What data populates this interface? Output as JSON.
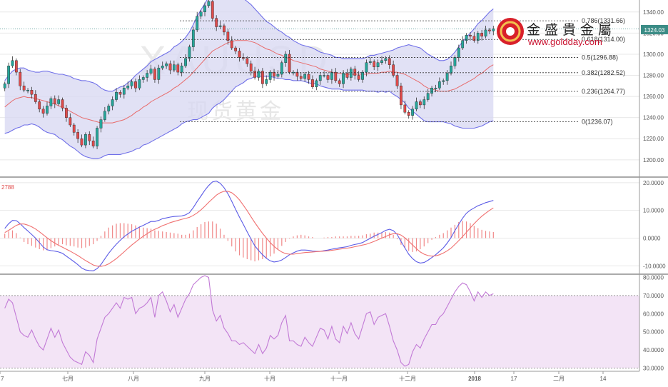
{
  "watermark": {
    "symbol": "XAUUSD",
    "subtitle": "现货黄金"
  },
  "logo": {
    "name": "金盛貴金屬",
    "url": "www.goldday.com"
  },
  "colors": {
    "up": "#26a69a",
    "down": "#e04b4b",
    "band_line": "#6f6fe8",
    "band_fill": "#d7d7f2",
    "ma_mid": "#e86b6b",
    "macd": "#5b5be6",
    "signal": "#f07070",
    "hist": "#f08888",
    "rsi_line": "#c27ad6",
    "rsi_fill": "#f3e4f6",
    "grid": "#e8e8e8",
    "axis": "#555555"
  },
  "chart_data": [
    {
      "id": "price",
      "type": "candlestick",
      "title": "",
      "y_ticks": [
        1200,
        1220,
        1240,
        1260,
        1280,
        1300,
        1320,
        1340
      ],
      "ylim": [
        1185,
        1350
      ],
      "current_price": "1324.03",
      "x_labels": [
        "7",
        "七月",
        "八月",
        "九月",
        "十月",
        "十一月",
        "十二月",
        "2018",
        "17",
        "二月",
        "14"
      ],
      "fib_levels": [
        {
          "label": "0.786(1331.66)",
          "value": 1331.66
        },
        {
          "label": "0.618(1314.00)",
          "value": 1314.0
        },
        {
          "label": "0.5(1296.88)",
          "value": 1296.88
        },
        {
          "label": "0.382(1282.52)",
          "value": 1282.52
        },
        {
          "label": "0.236(1264.77)",
          "value": 1264.77
        },
        {
          "label": "0(1236.07)",
          "value": 1236.07
        }
      ],
      "closes": [
        1272,
        1289,
        1294,
        1283,
        1270,
        1266,
        1266,
        1262,
        1255,
        1248,
        1244,
        1251,
        1258,
        1253,
        1257,
        1249,
        1240,
        1233,
        1226,
        1220,
        1214,
        1224,
        1218,
        1213,
        1230,
        1238,
        1246,
        1251,
        1257,
        1264,
        1262,
        1268,
        1270,
        1274,
        1268,
        1276,
        1278,
        1282,
        1286,
        1276,
        1287,
        1289,
        1291,
        1285,
        1290,
        1283,
        1289,
        1296,
        1307,
        1323,
        1336,
        1340,
        1346,
        1350,
        1334,
        1326,
        1327,
        1321,
        1313,
        1306,
        1303,
        1297,
        1296,
        1291,
        1284,
        1278,
        1284,
        1272,
        1276,
        1283,
        1279,
        1281,
        1292,
        1300,
        1283,
        1283,
        1279,
        1277,
        1281,
        1276,
        1269,
        1275,
        1280,
        1280,
        1276,
        1283,
        1275,
        1272,
        1282,
        1278,
        1286,
        1280,
        1276,
        1283,
        1292,
        1293,
        1288,
        1292,
        1294,
        1296,
        1290,
        1280,
        1270,
        1252,
        1245,
        1242,
        1248,
        1255,
        1252,
        1257,
        1263,
        1268,
        1268,
        1274,
        1275,
        1282,
        1289,
        1297,
        1306,
        1313,
        1318,
        1317,
        1313,
        1320,
        1317,
        1323,
        1322,
        1324
      ],
      "middle_band": [
        1250,
        1253,
        1256,
        1258,
        1259,
        1260,
        1259,
        1259,
        1258,
        1257,
        1256,
        1255,
        1254,
        1253,
        1251,
        1250,
        1248,
        1246,
        1244,
        1242,
        1240,
        1239,
        1238,
        1237,
        1236,
        1235,
        1235,
        1235,
        1235,
        1236,
        1237,
        1238,
        1240,
        1242,
        1245,
        1247,
        1250,
        1252,
        1255,
        1257,
        1259,
        1261,
        1263,
        1265,
        1268,
        1270,
        1273,
        1276,
        1279,
        1283,
        1287,
        1291,
        1295,
        1299,
        1303,
        1305,
        1307,
        1309,
        1311,
        1312,
        1313,
        1313,
        1313,
        1313,
        1312,
        1311,
        1309,
        1307,
        1305,
        1304,
        1302,
        1300,
        1299,
        1297,
        1296,
        1294,
        1293,
        1292,
        1291,
        1290,
        1289,
        1288,
        1286,
        1285,
        1284,
        1283,
        1282,
        1282,
        1281,
        1281,
        1281,
        1281,
        1281,
        1281,
        1281,
        1282,
        1282,
        1282,
        1283,
        1283,
        1284,
        1283,
        1283,
        1282,
        1281,
        1279,
        1277,
        1275,
        1273,
        1270,
        1268,
        1267,
        1266,
        1265,
        1265,
        1265,
        1266,
        1267,
        1269,
        1271,
        1273,
        1275,
        1277,
        1280,
        1282,
        1285,
        1288,
        1290
      ],
      "band_width": [
        25,
        27,
        28,
        28,
        28,
        27,
        26,
        25,
        25,
        26,
        28,
        29,
        29,
        29,
        30,
        31,
        32,
        33,
        33,
        34,
        35,
        36,
        36,
        36,
        35,
        33,
        31,
        30,
        30,
        31,
        32,
        32,
        33,
        34,
        35,
        36,
        36,
        37,
        38,
        38,
        38,
        38,
        38,
        38,
        39,
        39,
        39,
        40,
        42,
        45,
        49,
        51,
        53,
        55,
        54,
        53,
        53,
        52,
        50,
        47,
        44,
        42,
        40,
        37,
        35,
        32,
        30,
        28,
        26,
        25,
        24,
        23,
        22,
        21,
        20,
        19,
        18,
        17,
        17,
        17,
        17,
        16,
        16,
        16,
        16,
        16,
        15,
        15,
        15,
        15,
        15,
        15,
        15,
        15,
        16,
        17,
        17,
        18,
        18,
        19,
        19,
        21,
        23,
        25,
        27,
        30,
        31,
        32,
        33,
        33,
        32,
        31,
        30,
        29,
        29,
        30,
        32,
        35,
        38,
        41,
        43,
        45,
        47,
        49,
        50,
        51,
        52,
        53
      ]
    },
    {
      "id": "macd",
      "type": "line",
      "label": "2788",
      "y_ticks": [
        -10,
        0,
        10,
        20
      ],
      "ylim": [
        -12.5,
        21
      ],
      "macd": [
        3.5,
        5.2,
        6.4,
        6.3,
        5.2,
        3.8,
        2.6,
        1.3,
        0.0,
        -1.6,
        -3.2,
        -4.2,
        -4.5,
        -4.7,
        -5.0,
        -5.5,
        -6.5,
        -7.5,
        -8.5,
        -9.6,
        -10.8,
        -11.5,
        -11.7,
        -11.8,
        -11.0,
        -9.5,
        -7.5,
        -5.5,
        -3.8,
        -2.2,
        -0.8,
        0.5,
        1.5,
        2.5,
        3.2,
        4.0,
        4.6,
        5.3,
        6.0,
        6.0,
        6.4,
        7.0,
        7.3,
        7.6,
        7.8,
        7.9,
        8.0,
        8.4,
        9.2,
        11.0,
        13.2,
        15.2,
        17.3,
        19.0,
        20.3,
        20.6,
        19.8,
        18.2,
        16.0,
        13.3,
        10.4,
        7.6,
        5.0,
        2.3,
        -0.3,
        -2.8,
        -4.5,
        -6.0,
        -7.3,
        -8.2,
        -8.6,
        -8.4,
        -7.9,
        -7.0,
        -6.0,
        -5.3,
        -4.7,
        -4.3,
        -4.3,
        -4.4,
        -4.7,
        -4.8,
        -4.8,
        -4.5,
        -4.3,
        -4.0,
        -3.7,
        -3.5,
        -3.3,
        -3.1,
        -2.6,
        -2.3,
        -2.0,
        -1.6,
        -0.8,
        -0.1,
        0.7,
        1.3,
        2.0,
        2.8,
        3.2,
        2.7,
        1.3,
        -1.2,
        -3.5,
        -5.8,
        -7.4,
        -8.5,
        -9.0,
        -8.8,
        -8.0,
        -7.0,
        -6.0,
        -4.8,
        -3.5,
        -1.8,
        0.2,
        2.7,
        5.0,
        7.2,
        9.0,
        10.1,
        10.9,
        11.7,
        12.2,
        12.8,
        13.2,
        13.6
      ],
      "signal": [
        2.0,
        2.8,
        3.7,
        4.6,
        5.1,
        5.1,
        4.7,
        4.1,
        3.3,
        2.3,
        1.2,
        0.1,
        -0.9,
        -1.8,
        -2.6,
        -3.3,
        -4.0,
        -4.7,
        -5.5,
        -6.3,
        -7.2,
        -8.1,
        -8.9,
        -9.7,
        -10.1,
        -10.2,
        -9.9,
        -9.3,
        -8.4,
        -7.4,
        -6.2,
        -5.0,
        -3.7,
        -2.5,
        -1.4,
        -0.3,
        0.7,
        1.6,
        2.5,
        3.2,
        3.8,
        4.5,
        5.0,
        5.6,
        6.0,
        6.4,
        6.8,
        7.1,
        7.5,
        8.2,
        9.1,
        10.2,
        11.5,
        12.9,
        14.2,
        15.5,
        16.4,
        16.9,
        16.9,
        16.4,
        15.3,
        13.8,
        11.9,
        9.9,
        7.7,
        5.6,
        3.6,
        1.7,
        0.0,
        -1.6,
        -3.0,
        -4.1,
        -5.0,
        -5.6,
        -5.8,
        -5.8,
        -5.6,
        -5.4,
        -5.2,
        -5.1,
        -5.0,
        -4.9,
        -4.8,
        -4.7,
        -4.6,
        -4.4,
        -4.2,
        -4.0,
        -3.8,
        -3.6,
        -3.4,
        -3.1,
        -2.8,
        -2.5,
        -2.2,
        -1.7,
        -1.2,
        -0.6,
        0.0,
        0.6,
        1.2,
        1.6,
        1.6,
        1.1,
        0.1,
        -1.1,
        -2.5,
        -3.8,
        -5.0,
        -5.8,
        -6.3,
        -6.5,
        -6.4,
        -6.0,
        -5.4,
        -4.6,
        -3.6,
        -2.3,
        -0.9,
        0.6,
        2.1,
        3.7,
        5.2,
        6.6,
        7.9,
        9.0,
        10.0,
        10.9
      ],
      "histogram": [
        0.8,
        1.2,
        1.4,
        0.9,
        0.1,
        -0.7,
        -1.1,
        -1.4,
        -1.7,
        -2.0,
        -2.2,
        -2.2,
        -1.8,
        -1.5,
        -1.2,
        -1.1,
        -1.3,
        -1.4,
        -1.5,
        -1.7,
        -1.8,
        -1.7,
        -1.4,
        -1.1,
        -0.5,
        0.4,
        1.2,
        1.9,
        2.3,
        2.6,
        2.7,
        2.7,
        2.6,
        2.5,
        2.3,
        2.1,
        1.9,
        1.8,
        1.7,
        1.4,
        1.3,
        1.2,
        1.1,
        1.0,
        0.9,
        0.8,
        0.6,
        0.6,
        0.8,
        1.4,
        2.0,
        2.5,
        2.9,
        3.0,
        3.0,
        2.6,
        1.7,
        0.6,
        -0.5,
        -1.5,
        -2.4,
        -3.1,
        -3.5,
        -3.8,
        -4.0,
        -4.2,
        -4.0,
        -3.8,
        -3.6,
        -3.3,
        -2.8,
        -2.1,
        -1.4,
        -0.7,
        -0.1,
        0.3,
        0.5,
        0.6,
        0.5,
        0.3,
        0.2,
        0.0,
        0.0,
        0.1,
        0.2,
        0.2,
        0.3,
        0.3,
        0.3,
        0.3,
        0.4,
        0.4,
        0.4,
        0.5,
        0.7,
        0.8,
        1.0,
        1.0,
        1.0,
        1.1,
        1.0,
        0.6,
        -0.2,
        -1.2,
        -1.8,
        -2.3,
        -2.5,
        -2.4,
        -2.0,
        -1.5,
        -0.9,
        -0.3,
        0.2,
        0.6,
        0.9,
        1.4,
        1.9,
        2.4,
        2.9,
        3.1,
        3.0,
        2.7,
        2.2,
        1.8,
        1.5,
        1.3,
        1.2,
        1.1
      ]
    },
    {
      "id": "rsi",
      "type": "line",
      "y_ticks": [
        30,
        40,
        50,
        60,
        70,
        80
      ],
      "ylim": [
        29,
        81
      ],
      "overbought": 70,
      "oversold": 30,
      "values": [
        63,
        68,
        66,
        58,
        50,
        48,
        47,
        51,
        46,
        42,
        40,
        46,
        52,
        47,
        51,
        44,
        40,
        36,
        34,
        33,
        32,
        39,
        37,
        33,
        46,
        52,
        58,
        60,
        63,
        66,
        63,
        69,
        68,
        69,
        60,
        63,
        64,
        66,
        69,
        58,
        70,
        72,
        67,
        61,
        65,
        58,
        63,
        68,
        71,
        76,
        78,
        80,
        81,
        80,
        62,
        56,
        59,
        52,
        49,
        45,
        45,
        43,
        44,
        42,
        40,
        38,
        43,
        38,
        41,
        48,
        46,
        48,
        55,
        59,
        45,
        45,
        43,
        42,
        47,
        44,
        42,
        47,
        52,
        51,
        46,
        53,
        46,
        44,
        53,
        49,
        55,
        49,
        46,
        53,
        60,
        61,
        54,
        58,
        59,
        60,
        53,
        45,
        40,
        33,
        31,
        32,
        39,
        43,
        41,
        46,
        50,
        54,
        54,
        58,
        60,
        64,
        68,
        72,
        75,
        77,
        76,
        72,
        67,
        72,
        69,
        72,
        70,
        71
      ]
    }
  ]
}
